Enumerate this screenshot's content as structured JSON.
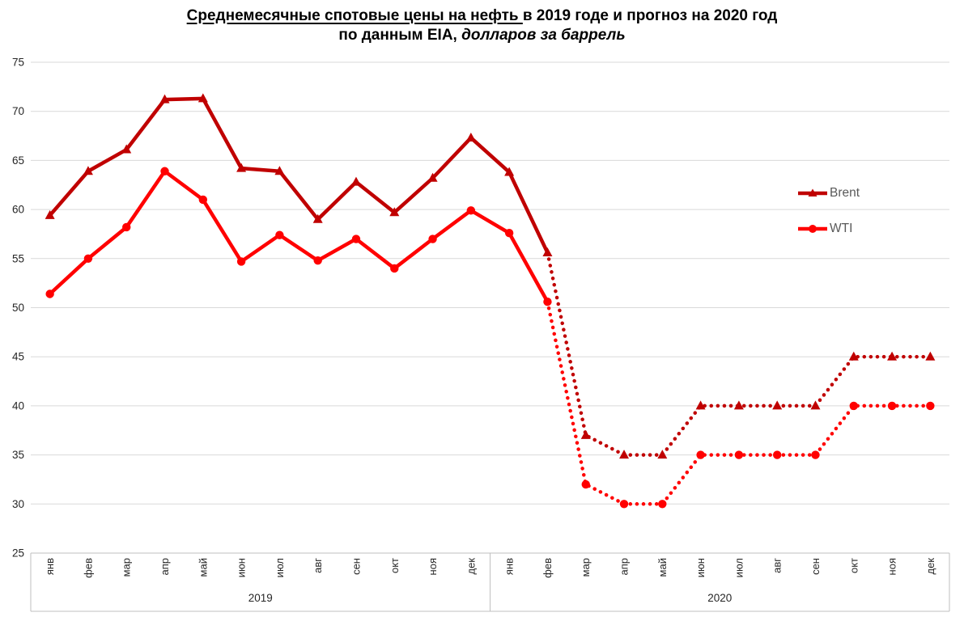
{
  "title": {
    "line1_underlined": "Среднемесячные спотовые цены на нефть ",
    "line1_rest": "в 2019 годе и прогноз на 2020 год",
    "line2_plain": "по данным EIA, ",
    "line2_italic": "долларов за баррель"
  },
  "chart_data": {
    "type": "line",
    "title": "Среднемесячные спотовые цены на нефть в 2019 годе и прогноз на 2020 год",
    "subtitle": "по данным EIA, долларов за баррель",
    "ylim": [
      25,
      75
    ],
    "yticks": [
      25,
      30,
      35,
      40,
      45,
      50,
      55,
      60,
      65,
      70,
      75
    ],
    "grid": true,
    "legend_position": "inside-right",
    "x_groups": [
      {
        "label": "2019",
        "months": [
          "янв",
          "фев",
          "мар",
          "апр",
          "май",
          "июн",
          "июл",
          "авг",
          "сен",
          "окт",
          "ноя",
          "дек"
        ]
      },
      {
        "label": "2020",
        "months": [
          "янв",
          "фев",
          "мар",
          "апр",
          "май",
          "июн",
          "июл",
          "авг",
          "сен",
          "окт",
          "ноя",
          "дек"
        ]
      }
    ],
    "forecast_dotted_from_index": 13,
    "series": [
      {
        "name": "Brent",
        "color": "#C00000",
        "marker": "triangle",
        "values": [
          59.4,
          63.9,
          66.1,
          71.2,
          71.3,
          64.2,
          63.9,
          59.0,
          62.8,
          59.7,
          63.2,
          67.3,
          63.8,
          55.6,
          37,
          35,
          35,
          40,
          40,
          40,
          40,
          45,
          45,
          45
        ]
      },
      {
        "name": "WTI",
        "color": "#FF0000",
        "marker": "circle",
        "values": [
          51.4,
          55.0,
          58.2,
          63.9,
          61.0,
          54.7,
          57.4,
          54.8,
          57.0,
          54.0,
          57.0,
          59.9,
          57.6,
          50.6,
          32,
          30,
          30,
          35,
          35,
          35,
          35,
          40,
          40,
          40
        ]
      }
    ],
    "colors": {
      "gridline": "#D9D9D9",
      "axis": "#BFBFBF",
      "y_tick_label": "#262626",
      "category_label": "#262626",
      "legend_text": "#595959"
    }
  }
}
